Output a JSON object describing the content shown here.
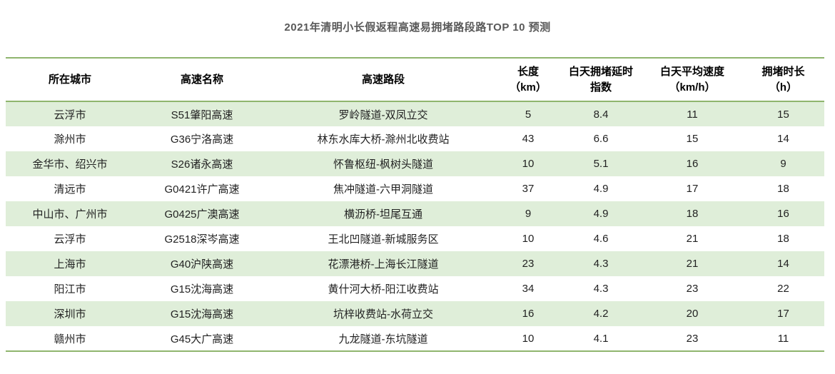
{
  "title": "2021年清明小长假返程高速易拥堵路段路TOP 10 预测",
  "colors": {
    "accent_green": "#8fb56e",
    "row_stripe_green": "#dfeed9",
    "title_text": "#595959",
    "body_text": "#222222"
  },
  "table": {
    "columns": [
      {
        "label": "所在城市"
      },
      {
        "label": "高速名称"
      },
      {
        "label": "高速路段"
      },
      {
        "label": "长度\n（km）"
      },
      {
        "label": "白天拥堵延时\n指数"
      },
      {
        "label": "白天平均速度\n（km/h）"
      },
      {
        "label": "拥堵时长\n（h）"
      }
    ],
    "rows": [
      [
        "云浮市",
        "S51肇阳高速",
        "罗岭隧道-双凤立交",
        "5",
        "8.4",
        "11",
        "15"
      ],
      [
        "滁州市",
        "G36宁洛高速",
        "林东水库大桥-滁州北收费站",
        "43",
        "6.6",
        "15",
        "14"
      ],
      [
        "金华市、绍兴市",
        "S26诸永高速",
        "怀鲁枢纽-枫树头隧道",
        "10",
        "5.1",
        "16",
        "9"
      ],
      [
        "清远市",
        "G0421许广高速",
        "焦冲隧道-六甲洞隧道",
        "37",
        "4.9",
        "17",
        "18"
      ],
      [
        "中山市、广州市",
        "G0425广澳高速",
        "横沥桥-坦尾互通",
        "9",
        "4.9",
        "18",
        "16"
      ],
      [
        "云浮市",
        "G2518深岑高速",
        "王北凹隧道-新城服务区",
        "10",
        "4.6",
        "21",
        "18"
      ],
      [
        "上海市",
        "G40沪陕高速",
        "花漂港桥-上海长江隧道",
        "23",
        "4.3",
        "21",
        "14"
      ],
      [
        "阳江市",
        "G15沈海高速",
        "黄什河大桥-阳江收费站",
        "34",
        "4.3",
        "23",
        "22"
      ],
      [
        "深圳市",
        "G15沈海高速",
        "坑梓收费站-水荷立交",
        "16",
        "4.2",
        "20",
        "17"
      ],
      [
        "赣州市",
        "G45大广高速",
        "九龙隧道-东坑隧道",
        "10",
        "4.1",
        "23",
        "11"
      ]
    ]
  },
  "chart_data": {
    "type": "table",
    "title": "2021年清明小长假返程高速易拥堵路段路TOP 10 预测",
    "columns": [
      "所在城市",
      "高速名称",
      "高速路段",
      "长度（km）",
      "白天拥堵延时指数",
      "白天平均速度（km/h）",
      "拥堵时长（h）"
    ],
    "rows": [
      [
        "云浮市",
        "S51肇阳高速",
        "罗岭隧道-双凤立交",
        5,
        8.4,
        11,
        15
      ],
      [
        "滁州市",
        "G36宁洛高速",
        "林东水库大桥-滁州北收费站",
        43,
        6.6,
        15,
        14
      ],
      [
        "金华市、绍兴市",
        "S26诸永高速",
        "怀鲁枢纽-枫树头隧道",
        10,
        5.1,
        16,
        9
      ],
      [
        "清远市",
        "G0421许广高速",
        "焦冲隧道-六甲洞隧道",
        37,
        4.9,
        17,
        18
      ],
      [
        "中山市、广州市",
        "G0425广澳高速",
        "横沥桥-坦尾互通",
        9,
        4.9,
        18,
        16
      ],
      [
        "云浮市",
        "G2518深岑高速",
        "王北凹隧道-新城服务区",
        10,
        4.6,
        21,
        18
      ],
      [
        "上海市",
        "G40沪陕高速",
        "花漂港桥-上海长江隧道",
        23,
        4.3,
        21,
        14
      ],
      [
        "阳江市",
        "G15沈海高速",
        "黄什河大桥-阳江收费站",
        34,
        4.3,
        23,
        22
      ],
      [
        "深圳市",
        "G15沈海高速",
        "坑梓收费站-水荷立交",
        16,
        4.2,
        20,
        17
      ],
      [
        "赣州市",
        "G45大广高速",
        "九龙隧道-东坑隧道",
        10,
        4.1,
        23,
        11
      ]
    ],
    "layout": {
      "striped_rows": "odd rows light green",
      "rules": "green horizontal rule above header, below header, and below last row",
      "alignment": "all cells centered"
    }
  }
}
